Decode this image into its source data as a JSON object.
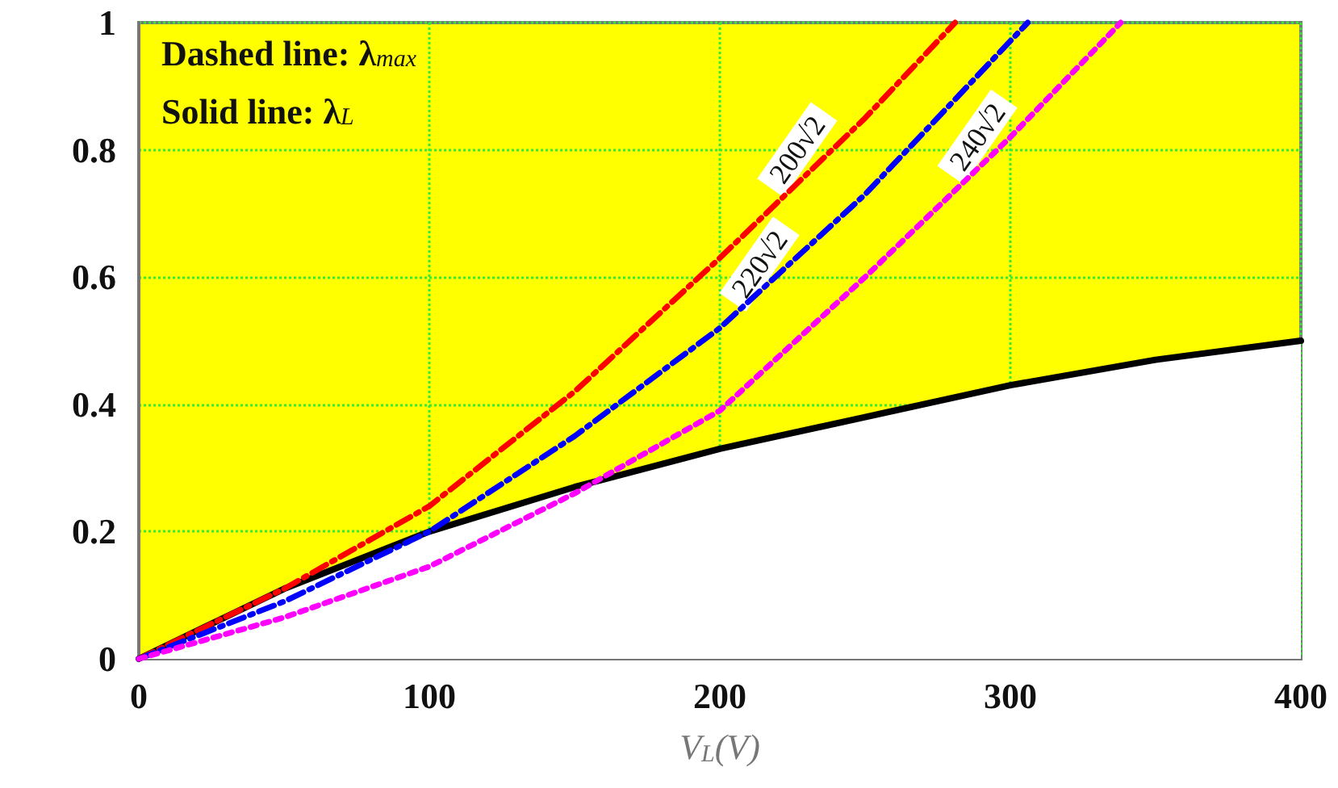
{
  "chart_data": {
    "type": "line",
    "xlabel": "V$_{L}$(V)",
    "xlim": [
      0,
      400
    ],
    "xticks": [
      0,
      100,
      200,
      300,
      400
    ],
    "ylim": [
      0,
      1
    ],
    "yticks": [
      0,
      0.2,
      0.4,
      0.6,
      0.8,
      1
    ],
    "grid": true,
    "marker": "none",
    "annotations": [
      "Dashed line: λ$_{max}$",
      "Solid line: λ$_{L}$",
      {
        "text": "200√2",
        "x": 233,
        "y": 0.78
      },
      {
        "text": "220√2",
        "x": 220,
        "y": 0.6
      },
      {
        "text": "240√2",
        "x": 295,
        "y": 0.8
      }
    ],
    "series": [
      {
        "type": "area",
        "color": "#000000",
        "line_style": "solid",
        "x": [
          0,
          50,
          100,
          150,
          200,
          250,
          300,
          350,
          400
        ],
        "values": [
          0,
          0.11,
          0.2,
          0.27,
          0.33,
          0.38,
          0.43,
          0.47,
          0.5
        ]
      },
      {
        "color": "#ff0000",
        "line_style": "dashed",
        "x": [
          0,
          50,
          100,
          150,
          200,
          250,
          281
        ],
        "values": [
          0,
          0.11,
          0.24,
          0.42,
          0.63,
          0.85,
          1
        ]
      },
      {
        "color": "#0000ff",
        "line_style": "dashed",
        "x": [
          0,
          50,
          100,
          150,
          200,
          250,
          306
        ],
        "values": [
          0,
          0.09,
          0.2,
          0.35,
          0.52,
          0.73,
          1
        ]
      },
      {
        "color": "#ff00ff",
        "line_style": "dotted",
        "x": [
          0,
          50,
          100,
          150,
          200,
          250,
          300,
          338
        ],
        "values": [
          0,
          0.065,
          0.145,
          0.26,
          0.39,
          0.6,
          0.82,
          1
        ]
      }
    ]
  }
}
